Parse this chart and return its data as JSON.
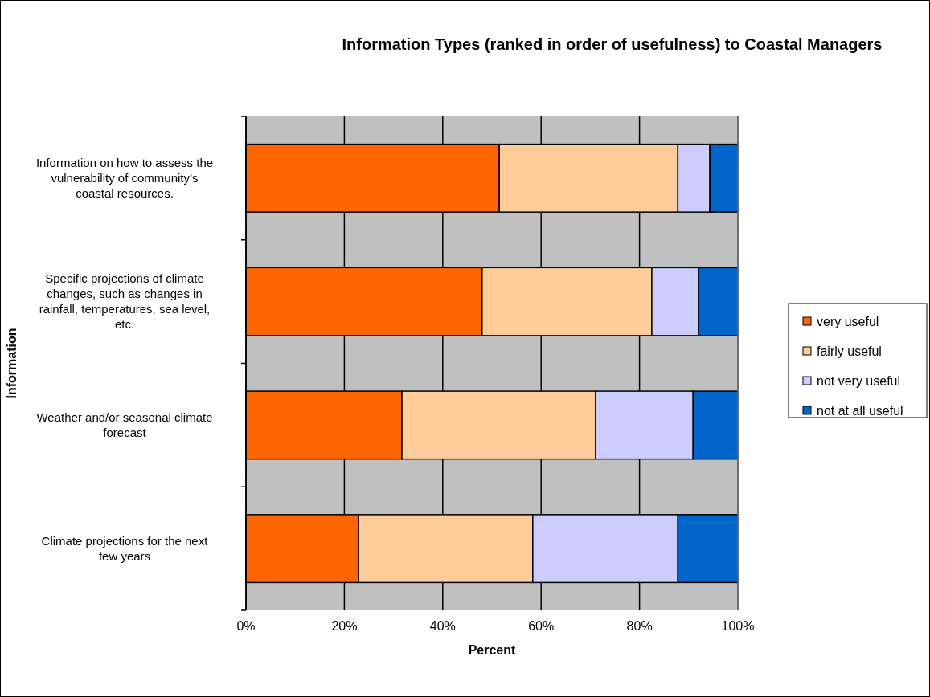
{
  "chart_data": {
    "type": "bar",
    "orientation": "horizontal",
    "stacked": true,
    "title": "Information Types (ranked in order of usefulness) to Coastal Managers",
    "xlabel": "Percent",
    "ylabel": "Information",
    "categories": [
      "Information on how to assess the vulnerability of community’s coastal resources.",
      "Specific projections of climate changes, such as changes in rainfall, temperatures, sea level, etc.",
      "Weather and/or seasonal climate forecast",
      "Climate projections for the next few years"
    ],
    "series": [
      {
        "name": "very useful",
        "color": "#ff6600",
        "values": [
          51.5,
          48.0,
          31.7,
          22.9
        ]
      },
      {
        "name": "fairly useful",
        "color": "#ffcc99",
        "values": [
          36.3,
          34.5,
          39.4,
          35.4
        ]
      },
      {
        "name": "not very useful",
        "color": "#ccccff",
        "values": [
          6.5,
          9.5,
          19.8,
          29.5
        ]
      },
      {
        "name": "not at all useful",
        "color": "#0066cc",
        "values": [
          5.7,
          8.0,
          9.1,
          12.2
        ]
      }
    ],
    "xlim": [
      0,
      100
    ],
    "xticks": [
      {
        "value": 0,
        "label": "0%"
      },
      {
        "value": 20,
        "label": "20%"
      },
      {
        "value": 40,
        "label": "40%"
      },
      {
        "value": 60,
        "label": "60%"
      },
      {
        "value": 80,
        "label": "80%"
      },
      {
        "value": 100,
        "label": "100%"
      }
    ],
    "grid": "x",
    "legend": "right"
  }
}
